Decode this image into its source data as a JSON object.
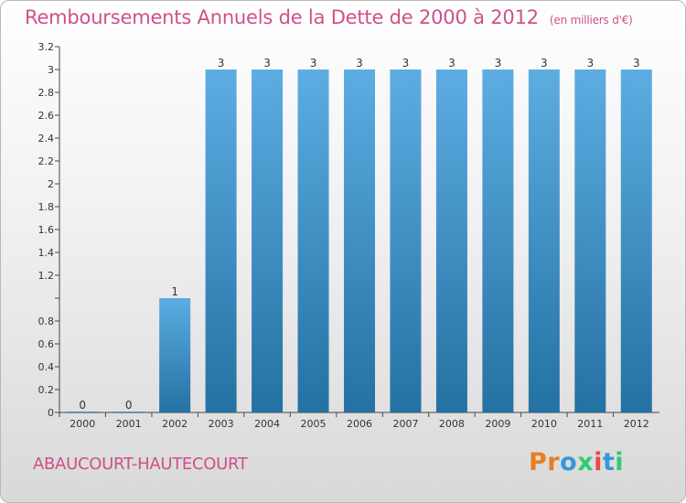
{
  "page": {
    "title": "Remboursements Annuels de la Dette de 2000 à 2012",
    "subtitle": "(en milliers d'€)",
    "town": "ABAUCOURT-HAUTECOURT",
    "logo": "Proxiti"
  },
  "colors": {
    "title": "#d0508a",
    "bar_top": "#5dade2",
    "bar_bottom": "#2471a3",
    "logo": [
      "#e67e22",
      "#e67e22",
      "#3498db",
      "#2ecc71",
      "#e74c3c",
      "#3498db",
      "#2ecc71"
    ]
  },
  "chart_data": {
    "type": "bar",
    "title": "Remboursements Annuels de la Dette de 2000 à 2012",
    "xlabel": "",
    "ylabel": "",
    "categories": [
      "2000",
      "2001",
      "2002",
      "2003",
      "2004",
      "2005",
      "2006",
      "2007",
      "2008",
      "2009",
      "2010",
      "2011",
      "2012"
    ],
    "values": [
      0,
      0,
      1,
      3,
      3,
      3,
      3,
      3,
      3,
      3,
      3,
      3,
      3
    ],
    "data_labels": [
      "0",
      "0",
      "1",
      "3",
      "3",
      "3",
      "3",
      "3",
      "3",
      "3",
      "3",
      "3",
      "3"
    ],
    "ylim": [
      0,
      3.2
    ],
    "yticks": [
      0,
      0.2,
      0.4,
      0.6,
      0.8,
      1,
      1.2,
      1.4,
      1.6,
      1.8,
      2,
      2.2,
      2.4,
      2.6,
      2.8,
      3,
      3.2
    ],
    "ytick_labels": [
      "0",
      "0.2",
      "0.4",
      "0.6",
      "0.8",
      "",
      "1.2",
      "1.4",
      "1.6",
      "1.8",
      "2",
      "2.2",
      "2.4",
      "2.6",
      "2.8",
      "3",
      "3.2"
    ],
    "grid": false
  }
}
